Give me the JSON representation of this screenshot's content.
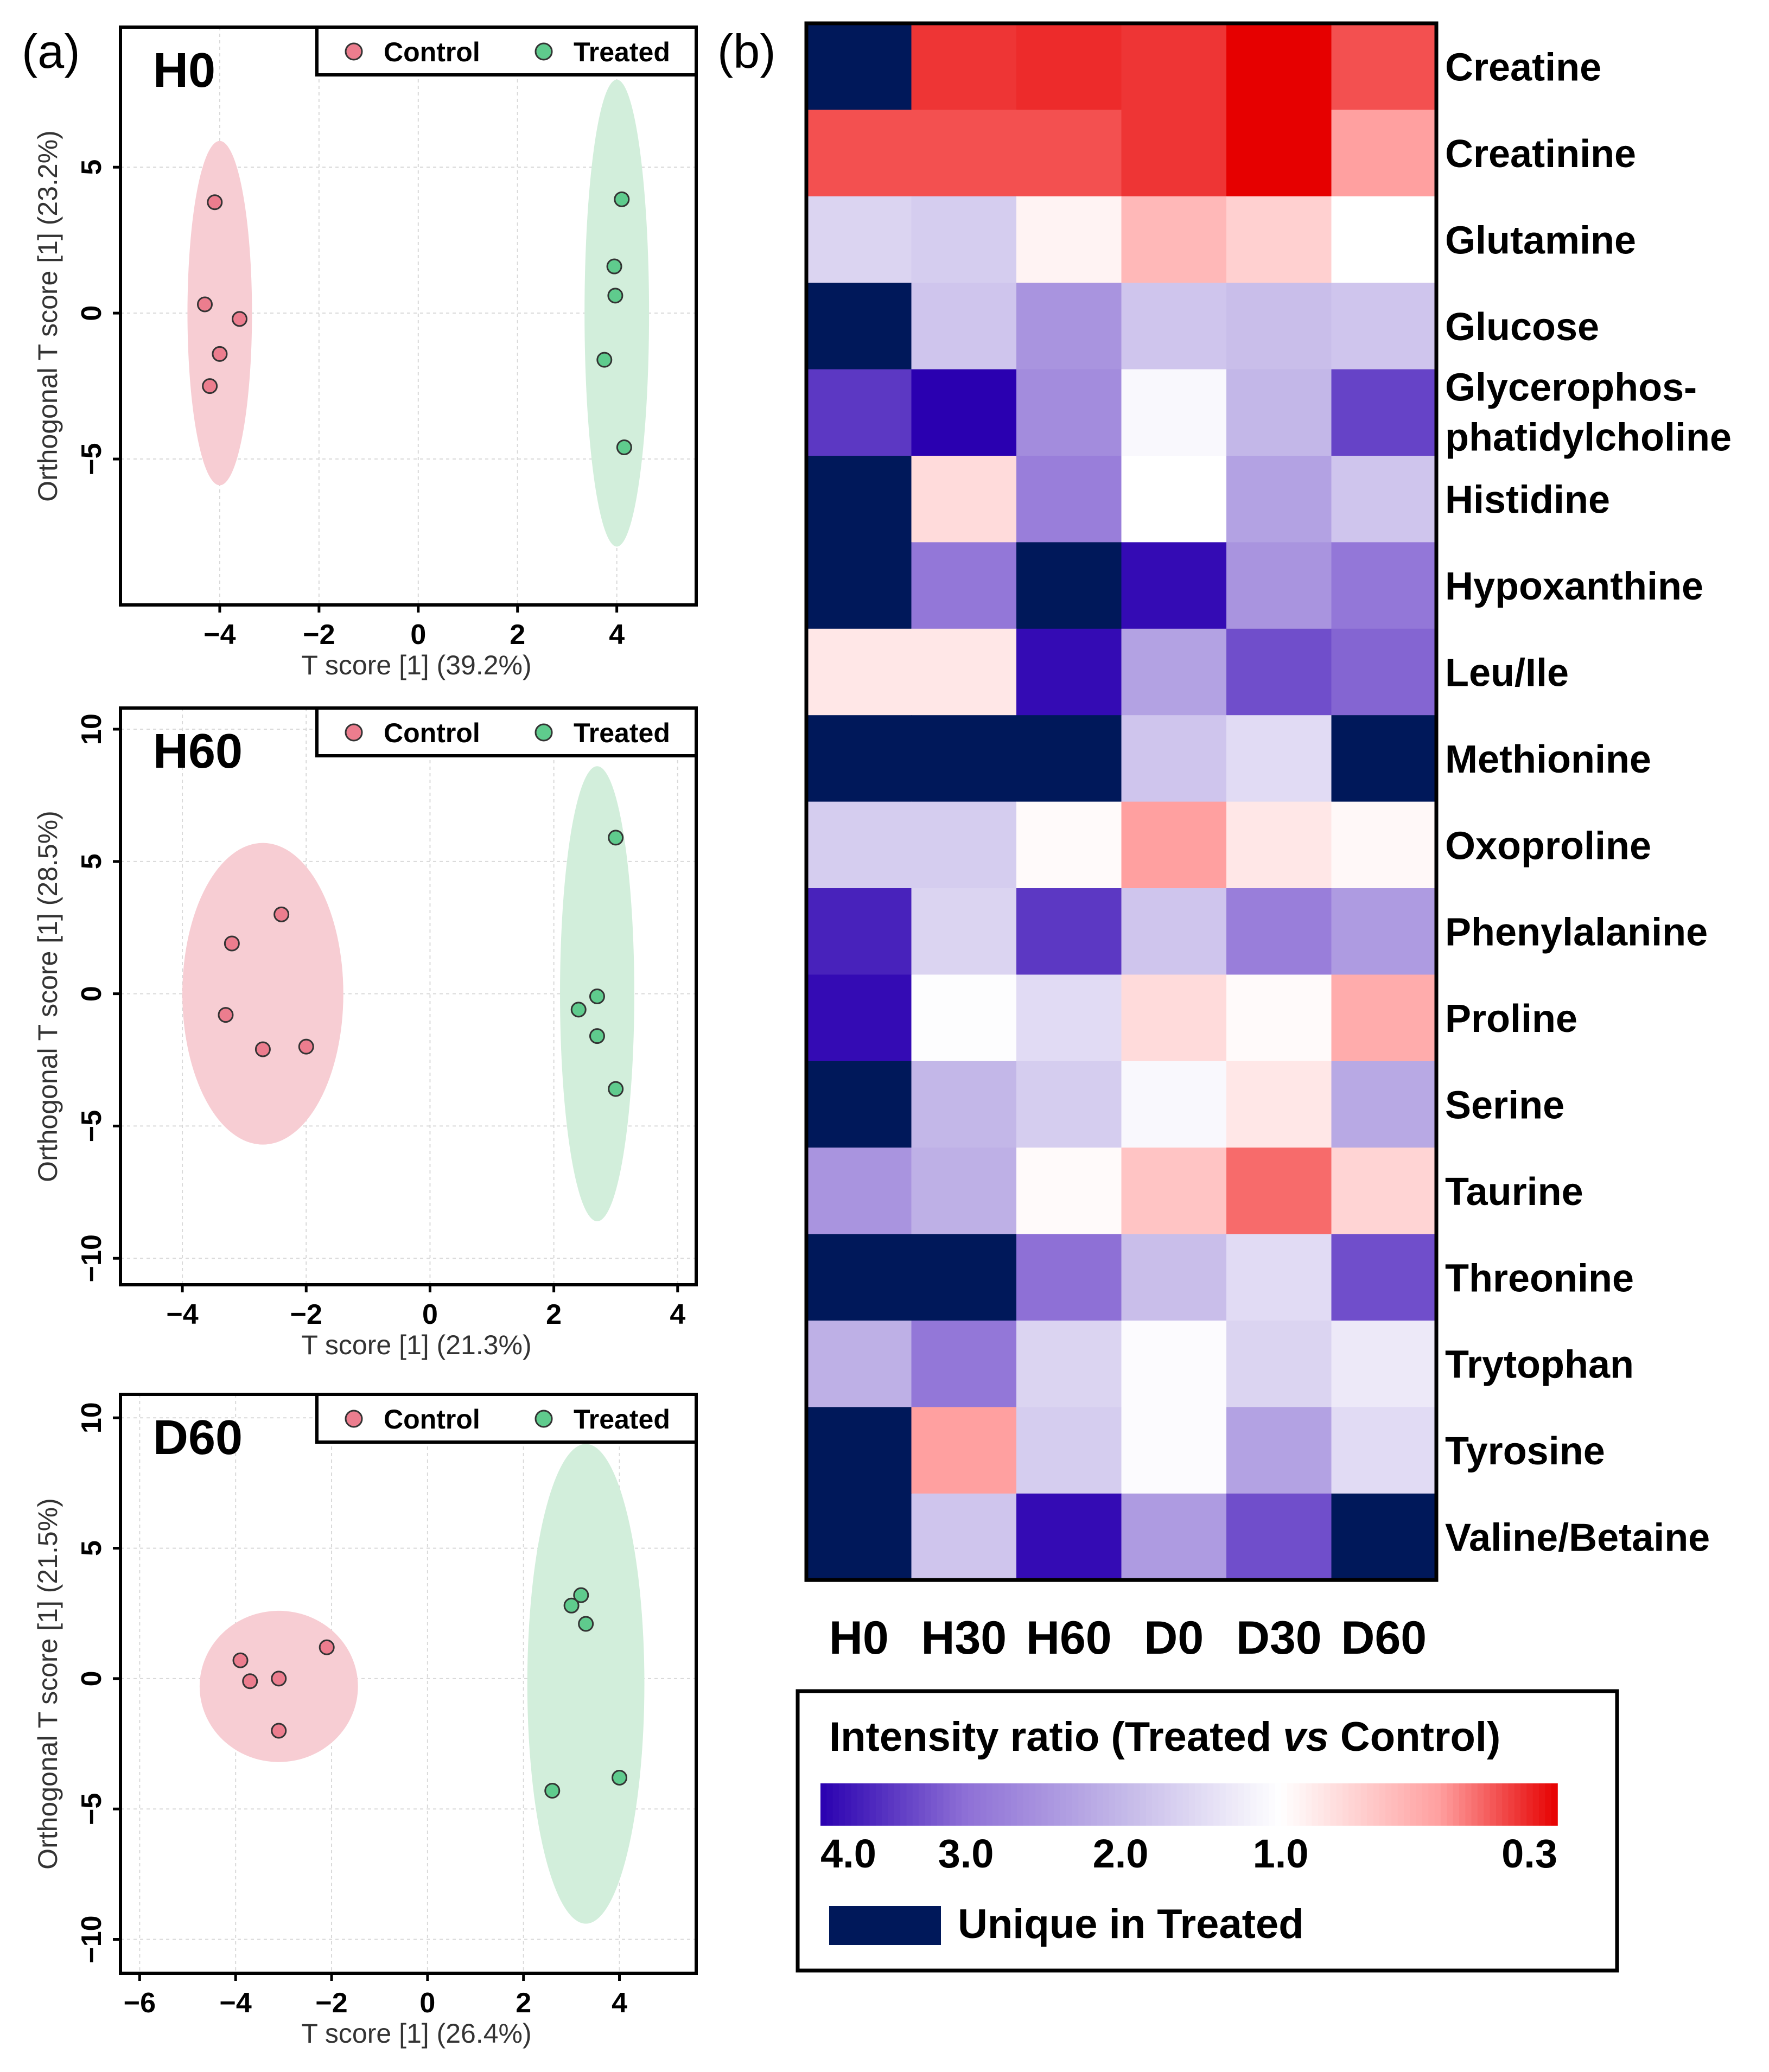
{
  "panel_labels": {
    "a": "(a)",
    "b": "(b)"
  },
  "legend_labels": {
    "control": "Control",
    "treated": "Treated"
  },
  "colors": {
    "control_fill": "#f7cdd3",
    "control_point": "#ec7d8e",
    "treated_fill": "#d2eedb",
    "treated_point": "#5fcb8d",
    "unique": "#00185a",
    "grid": "#d9d9d9",
    "frame": "#000000"
  },
  "chart_data": [
    {
      "type": "scatter",
      "title": "H0",
      "xlabel": "T score [1] (39.2%)",
      "ylabel": "Orthogonal T score [1] (23.2%)",
      "xlim": [
        -6.0,
        5.6
      ],
      "ylim": [
        -10.0,
        9.8
      ],
      "xticks": [
        -4,
        -2,
        0,
        2,
        4
      ],
      "xtick_labels": [
        "−4",
        "−2",
        "0",
        "2",
        "4"
      ],
      "yticks": [
        -5,
        0,
        5
      ],
      "ytick_labels": [
        "−5",
        "0",
        "5"
      ],
      "legend": "top-right",
      "series": [
        {
          "name": "Control",
          "points": [
            [
              -4.1,
              3.8
            ],
            [
              -4.3,
              0.3
            ],
            [
              -3.6,
              -0.2
            ],
            [
              -4.0,
              -1.4
            ],
            [
              -4.2,
              -2.5
            ]
          ],
          "ellipse": {
            "cx": -4.0,
            "cy": 0.0,
            "rx": 0.65,
            "ry": 5.9
          }
        },
        {
          "name": "Treated",
          "points": [
            [
              4.1,
              3.9
            ],
            [
              3.95,
              1.6
            ],
            [
              3.97,
              0.6
            ],
            [
              3.75,
              -1.6
            ],
            [
              4.15,
              -4.6
            ]
          ],
          "ellipse": {
            "cx": 4.0,
            "cy": 0.0,
            "rx": 0.65,
            "ry": 8.0
          }
        }
      ]
    },
    {
      "type": "scatter",
      "title": "H60",
      "xlabel": "T score [1] (21.3%)",
      "ylabel": "Orthogonal T score [1] (28.5%)",
      "xlim": [
        -5.0,
        4.3
      ],
      "ylim": [
        -11.0,
        10.8
      ],
      "xticks": [
        -4,
        -2,
        0,
        2,
        4
      ],
      "xtick_labels": [
        "−4",
        "−2",
        "0",
        "2",
        "4"
      ],
      "yticks": [
        -10,
        -5,
        0,
        5,
        10
      ],
      "ytick_labels": [
        "−10",
        "−5",
        "0",
        "5",
        "10"
      ],
      "legend": "top-right",
      "series": [
        {
          "name": "Control",
          "points": [
            [
              -2.4,
              3.0
            ],
            [
              -3.2,
              1.9
            ],
            [
              -3.3,
              -0.8
            ],
            [
              -2.7,
              -2.1
            ],
            [
              -2.0,
              -2.0
            ]
          ],
          "ellipse": {
            "cx": -2.7,
            "cy": 0.0,
            "rx": 1.3,
            "ry": 5.7
          }
        },
        {
          "name": "Treated",
          "points": [
            [
              3.0,
              5.9
            ],
            [
              2.7,
              -0.1
            ],
            [
              2.4,
              -0.6
            ],
            [
              2.7,
              -1.6
            ],
            [
              3.0,
              -3.6
            ]
          ],
          "ellipse": {
            "cx": 2.7,
            "cy": 0.0,
            "rx": 0.6,
            "ry": 8.6
          }
        }
      ]
    },
    {
      "type": "scatter",
      "title": "D60",
      "xlabel": "T score [1] (26.4%)",
      "ylabel": "Orthogonal T score [1] (21.5%)",
      "xlim": [
        -6.4,
        5.6
      ],
      "ylim": [
        -11.3,
        10.9
      ],
      "xticks": [
        -6,
        -4,
        -2,
        0,
        2,
        4
      ],
      "xtick_labels": [
        "−6",
        "−4",
        "−2",
        "0",
        "2",
        "4"
      ],
      "yticks": [
        -10,
        -5,
        0,
        5,
        10
      ],
      "ytick_labels": [
        "−10",
        "−5",
        "0",
        "5",
        "10"
      ],
      "legend": "top-right",
      "series": [
        {
          "name": "Control",
          "points": [
            [
              -2.1,
              1.2
            ],
            [
              -3.9,
              0.7
            ],
            [
              -3.7,
              -0.1
            ],
            [
              -3.1,
              0.0
            ],
            [
              -3.1,
              -2.0
            ]
          ],
          "ellipse": {
            "cx": -3.1,
            "cy": -0.3,
            "rx": 1.65,
            "ry": 2.9
          }
        },
        {
          "name": "Treated",
          "points": [
            [
              3.2,
              3.2
            ],
            [
              3.0,
              2.8
            ],
            [
              3.3,
              2.1
            ],
            [
              2.6,
              -4.3
            ],
            [
              4.0,
              -3.8
            ]
          ],
          "ellipse": {
            "cx": 3.3,
            "cy": -0.2,
            "rx": 1.22,
            "ry": 9.2
          }
        }
      ]
    },
    {
      "type": "heatmap",
      "columns": [
        "H0",
        "H30",
        "H60",
        "D0",
        "D30",
        "D60"
      ],
      "rows": [
        "Creatine",
        "Creatinine",
        "Glutamine",
        "Glucose",
        "Glycerophos-\nphatidylcholine",
        "Histidine",
        "Hypoxanthine",
        "Leu/Ile",
        "Methionine",
        "Oxoproline",
        "Phenylalanine",
        "Proline",
        "Serine",
        "Taurine",
        "Threonine",
        "Trytophan",
        "Tyrosine",
        "Valine/Betaine"
      ],
      "values": [
        [
          "Unique",
          0.4,
          0.38,
          0.4,
          0.3,
          0.45
        ],
        [
          0.45,
          0.45,
          0.45,
          0.4,
          0.3,
          0.6
        ],
        [
          1.6,
          1.7,
          0.95,
          0.7,
          0.8,
          1.0
        ],
        [
          "Unique",
          1.8,
          2.5,
          1.8,
          1.9,
          1.8
        ],
        [
          3.5,
          4.0,
          2.6,
          1.1,
          2.0,
          3.4
        ],
        [
          "Unique",
          0.85,
          2.8,
          1.0,
          2.3,
          1.8
        ],
        [
          "Unique",
          2.9,
          "Unique",
          3.9,
          2.5,
          2.9
        ],
        [
          0.9,
          0.9,
          3.9,
          2.3,
          3.3,
          3.1
        ],
        [
          "Unique",
          "Unique",
          "Unique",
          1.8,
          1.5,
          "Unique"
        ],
        [
          1.7,
          1.7,
          0.98,
          0.6,
          0.9,
          0.97
        ],
        [
          3.7,
          1.6,
          3.5,
          1.8,
          2.8,
          2.4
        ],
        [
          3.9,
          1.03,
          1.5,
          0.85,
          0.98,
          0.65
        ],
        [
          "Unique",
          2.0,
          1.7,
          1.1,
          0.9,
          2.2
        ],
        [
          2.5,
          2.1,
          0.98,
          0.75,
          0.5,
          0.82
        ],
        [
          "Unique",
          "Unique",
          3.0,
          1.9,
          1.5,
          3.3
        ],
        [
          2.1,
          2.9,
          1.6,
          1.05,
          1.6,
          1.3
        ],
        [
          "Unique",
          0.6,
          1.7,
          1.05,
          2.3,
          1.5
        ],
        [
          "Unique",
          1.8,
          3.9,
          2.4,
          3.3,
          "Unique"
        ]
      ],
      "colorbar": {
        "title_prefix": "Intensity ratio (Treated ",
        "title_vs": "vs",
        "title_suffix": " Control)",
        "ticks": [
          "4.0",
          "3.0",
          "2.0",
          "1.0",
          "0.3"
        ],
        "tick_values": [
          4.0,
          3.0,
          2.0,
          1.0,
          0.3
        ],
        "scale_stops": [
          {
            "value": 4.0,
            "color": "#2a00b0"
          },
          {
            "value": 3.0,
            "color": "#8e70d6"
          },
          {
            "value": 2.0,
            "color": "#c3b7e8"
          },
          {
            "value": 1.0,
            "color": "#ffffff"
          },
          {
            "value": 0.6,
            "color": "#ffa0a0"
          },
          {
            "value": 0.3,
            "color": "#e60000"
          }
        ],
        "unique_label": "Unique in Treated"
      }
    }
  ]
}
